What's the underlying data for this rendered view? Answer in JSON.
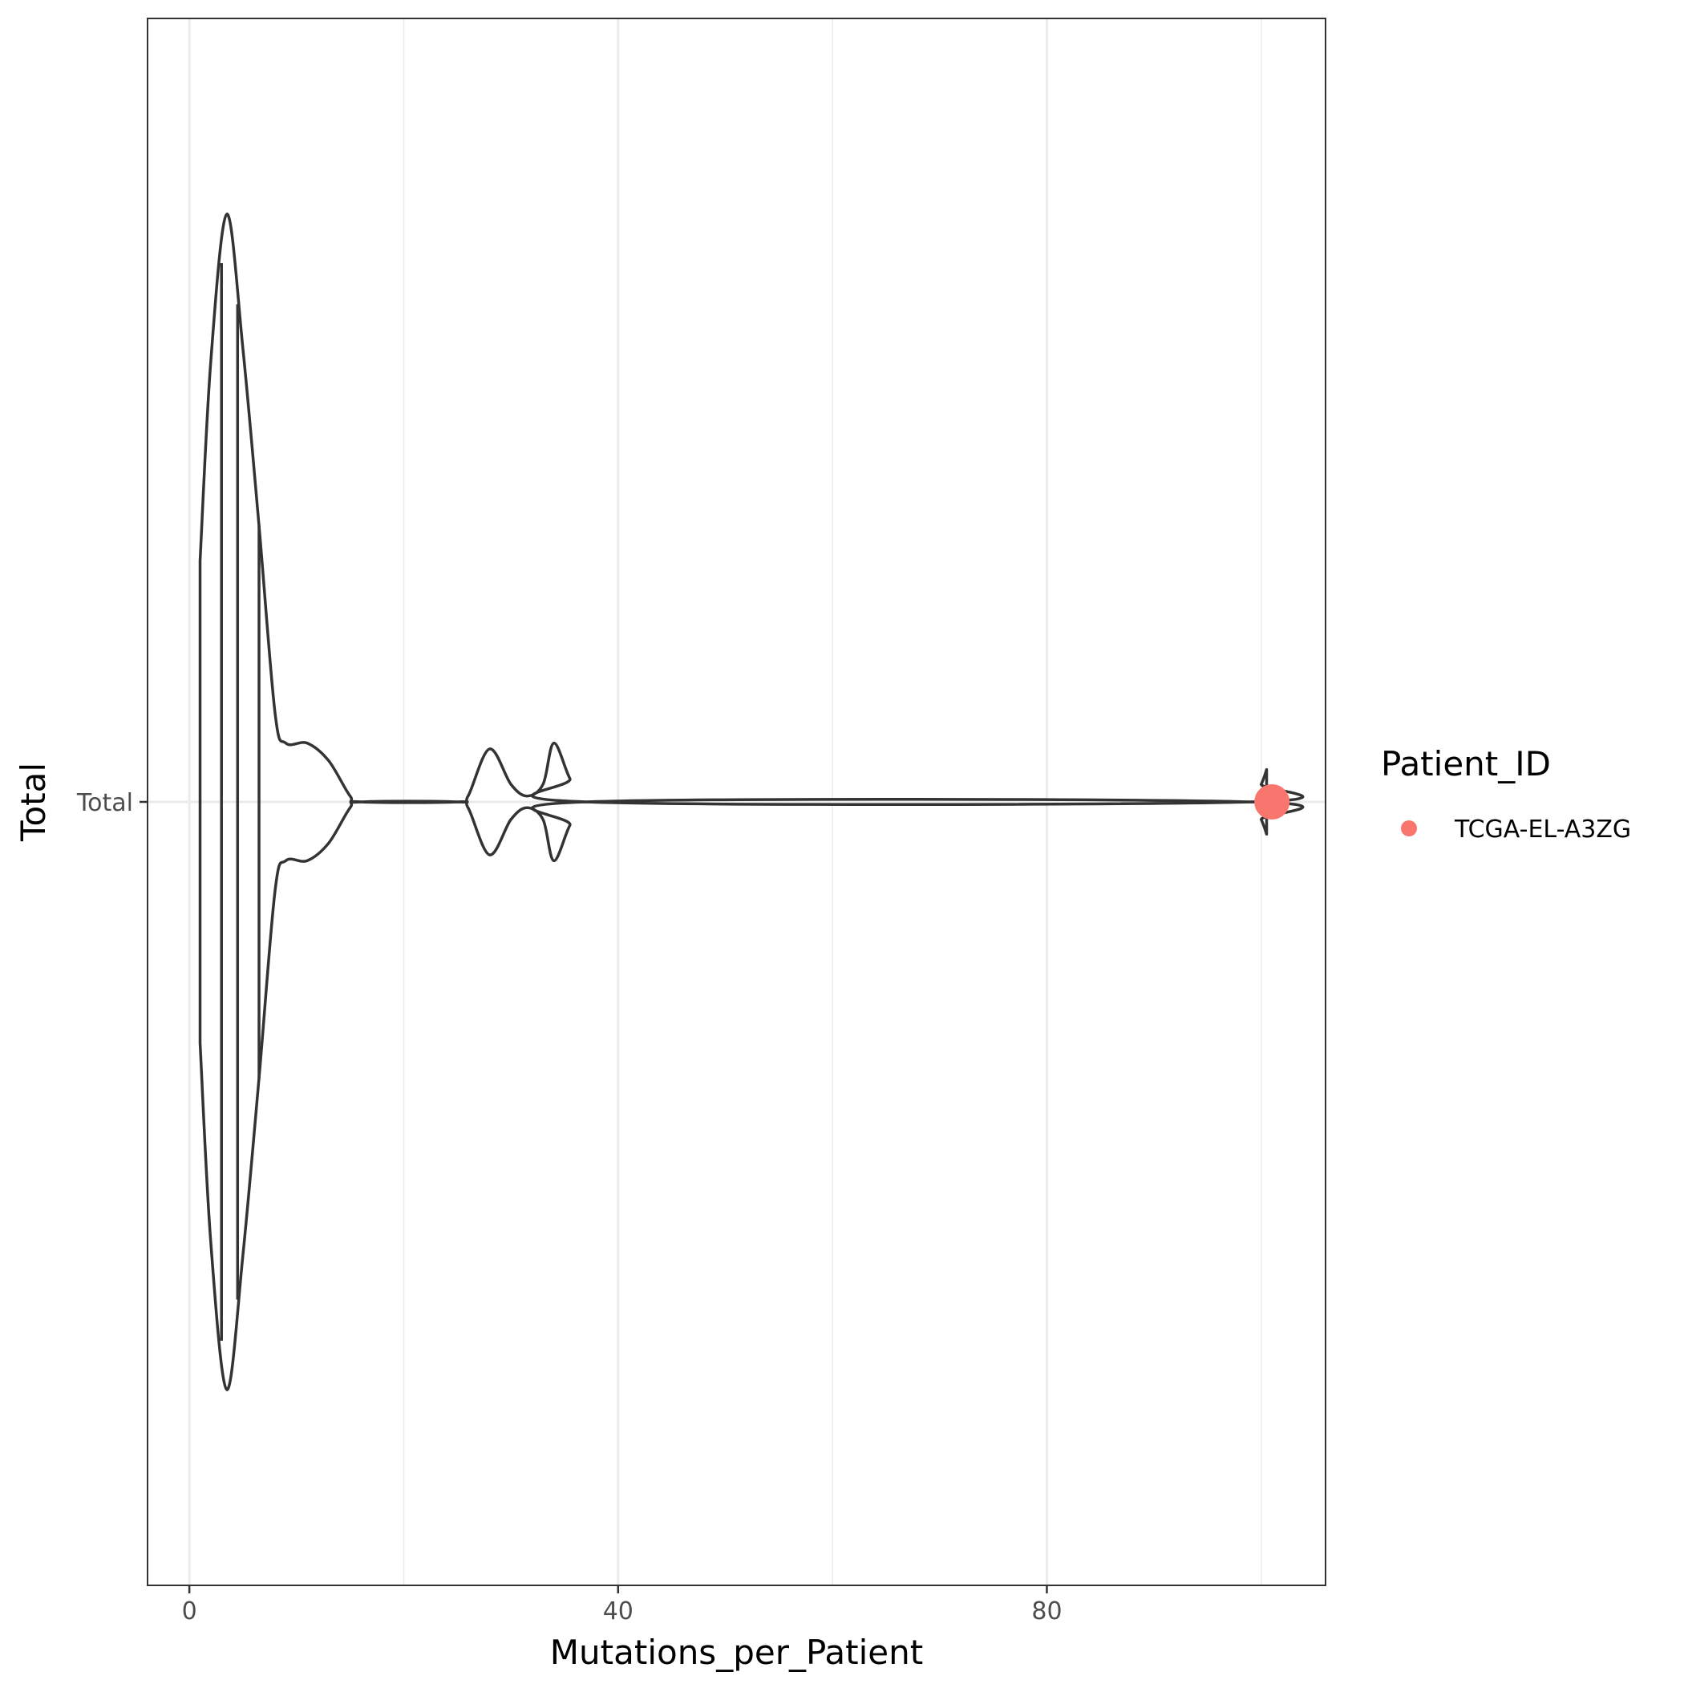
{
  "chart_data": {
    "type": "violin",
    "orientation": "horizontal",
    "xlabel": "Mutations_per_Patient",
    "ylabel": "Total",
    "categories": [
      "Total"
    ],
    "x_ticks": [
      0,
      40,
      80
    ],
    "x_tick_labels": [
      "0",
      "40",
      "80"
    ],
    "xlim": [
      -3.9,
      106
    ],
    "grid": true,
    "violin": {
      "category": "Total",
      "outline_color": "#333333",
      "density_max_at": 3.5,
      "density_profile": [
        [
          1,
          0.41
        ],
        [
          2,
          0.75
        ],
        [
          3.5,
          1.0
        ],
        [
          5,
          0.77
        ],
        [
          6.5,
          0.47
        ],
        [
          8,
          0.15
        ],
        [
          9,
          0.1
        ],
        [
          11,
          0.1
        ],
        [
          13,
          0.07
        ],
        [
          15,
          0.01
        ],
        [
          16,
          0.0
        ],
        [
          25,
          0.0
        ],
        [
          26,
          0.01
        ],
        [
          28,
          0.09
        ],
        [
          30,
          0.03
        ],
        [
          31.5,
          0.01
        ],
        [
          33,
          0.03
        ],
        [
          34,
          0.1
        ],
        [
          35.5,
          0.04
        ],
        [
          37,
          0.0
        ],
        [
          99,
          0.0
        ],
        [
          100,
          0.03
        ],
        [
          100.5,
          0.055
        ]
      ],
      "quantile_lines": [
        3,
        4.5,
        6.5
      ]
    },
    "points": [
      {
        "x": 101,
        "category": "Total",
        "patient_id": "TCGA-EL-A3ZG"
      }
    ],
    "legend": {
      "title": "Patient_ID",
      "position": "right",
      "entries": [
        {
          "label": "TCGA-EL-A3ZG",
          "color": "#F8766D"
        }
      ]
    }
  }
}
